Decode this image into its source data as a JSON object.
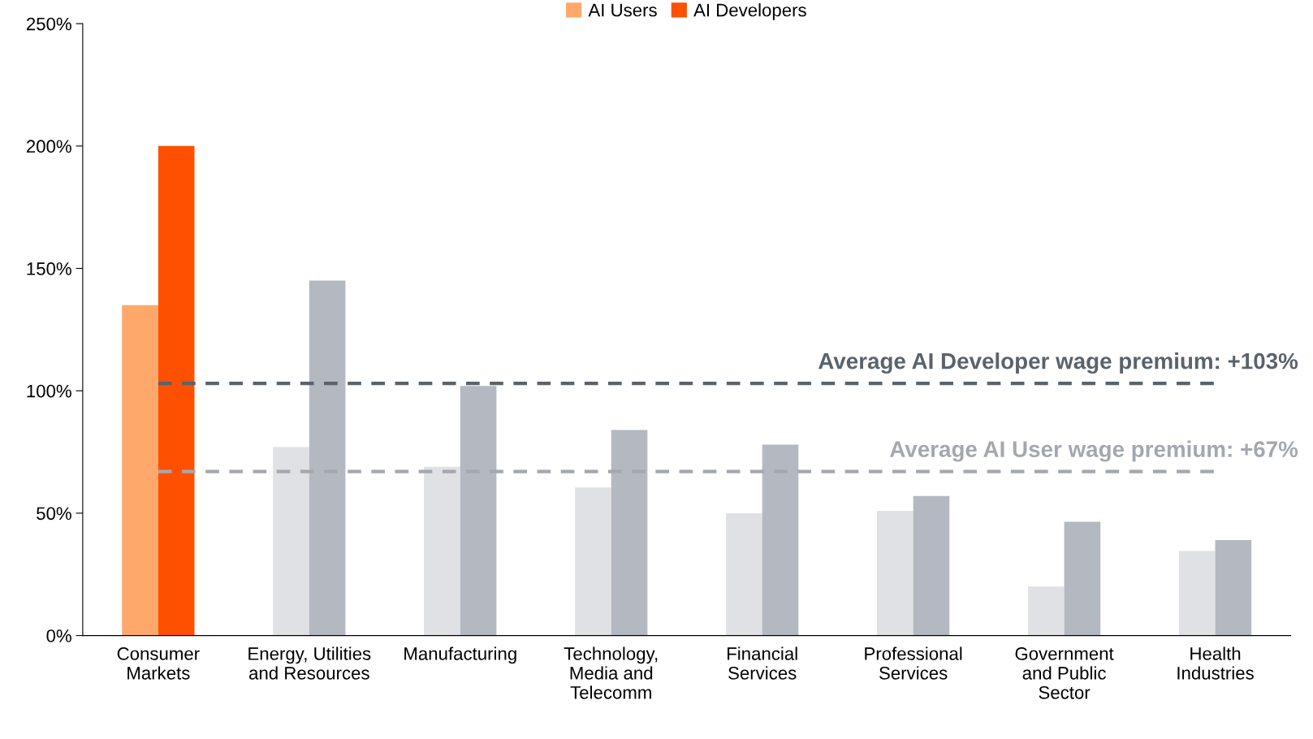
{
  "chart_data": {
    "type": "bar",
    "categories": [
      "Consumer\nMarkets",
      "Energy, Utilities\nand Resources",
      "Manufacturing",
      "Technology,\nMedia and\nTelecomm",
      "Financial\nServices",
      "Professional\nServices",
      "Government\nand Public\nSector",
      "Health\nIndustries"
    ],
    "series": [
      {
        "name": "AI Users",
        "color": "#ffa86b",
        "colors": [
          "#ffa86b",
          "#dfe1e4",
          "#dfe1e4",
          "#dfe1e4",
          "#dfe1e4",
          "#dfe1e4",
          "#dfe1e4",
          "#dfe1e4"
        ],
        "values": [
          135,
          77,
          69,
          60.5,
          50,
          51,
          20,
          34.5
        ]
      },
      {
        "name": "AI Developers",
        "color": "#fe5000",
        "colors": [
          "#fe5000",
          "#b4b9c1",
          "#b4b9c1",
          "#b4b9c1",
          "#b4b9c1",
          "#b4b9c1",
          "#b4b9c1",
          "#b4b9c1"
        ],
        "values": [
          200,
          145,
          102,
          84,
          78,
          57,
          46.5,
          39
        ]
      }
    ],
    "ylim": [
      0,
      250
    ],
    "yticks": [
      {
        "value": 0,
        "label": "0%"
      },
      {
        "value": 50,
        "label": "50%"
      },
      {
        "value": 100,
        "label": "100%"
      },
      {
        "value": 150,
        "label": "150%"
      },
      {
        "value": 200,
        "label": "200%"
      },
      {
        "value": 250,
        "label": "250%"
      }
    ],
    "ref_lines": [
      {
        "axis": "y",
        "value": 103,
        "label": "Average AI Developer wage premium: +103%",
        "color": "#5a636b",
        "line_style": "dashed"
      },
      {
        "axis": "y",
        "value": 67,
        "label": "Average AI User wage premium: +67%",
        "color": "#a4a8ae",
        "line_style": "dashed"
      }
    ],
    "legend": "top",
    "grid": false
  }
}
